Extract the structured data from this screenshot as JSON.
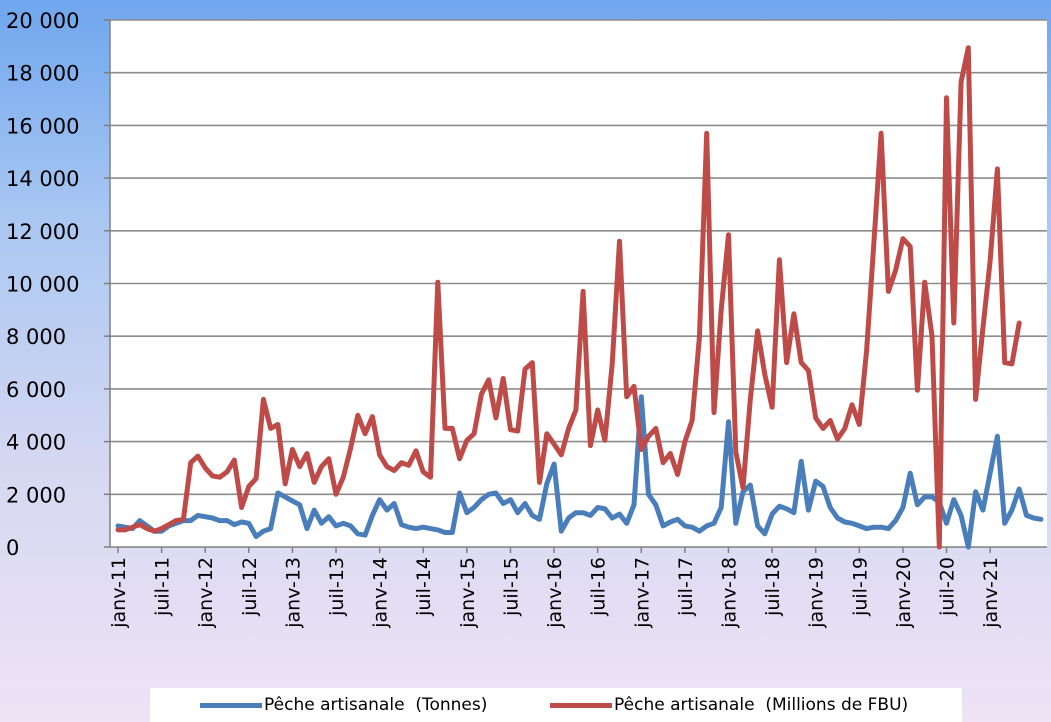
{
  "chart_data": {
    "type": "line",
    "title": "",
    "xlabel": "",
    "ylabel": "",
    "ylim": [
      0,
      20000
    ],
    "yticks": [
      "0",
      "2 000",
      "4 000",
      "6 000",
      "8 000",
      "10 000",
      "12 000",
      "14 000",
      "16 000",
      "18 000",
      "20 000"
    ],
    "xtick_labels": [
      "janv-11",
      "juil-11",
      "janv-12",
      "juil-12",
      "janv-13",
      "juil-13",
      "janv-14",
      "juil-14",
      "janv-15",
      "juil-15",
      "janv-16",
      "juil-16",
      "janv-17",
      "juil-17",
      "janv-18",
      "juil-18",
      "janv-19",
      "juil-19",
      "janv-20",
      "juil-20",
      "janv-21"
    ],
    "grid": true,
    "legend_position": "bottom",
    "series": [
      {
        "name": "Pêche artisanale  (Tonnes)",
        "color": "#4a7ebb",
        "values": [
          800,
          750,
          700,
          1000,
          800,
          600,
          600,
          800,
          900,
          1000,
          1000,
          1200,
          1150,
          1100,
          1000,
          1000,
          850,
          950,
          900,
          400,
          600,
          700,
          2050,
          1900,
          1750,
          1600,
          700,
          1400,
          900,
          1150,
          800,
          900,
          800,
          500,
          450,
          1200,
          1800,
          1400,
          1650,
          850,
          750,
          700,
          750,
          700,
          650,
          550,
          550,
          2050,
          1300,
          1500,
          1800,
          2000,
          2050,
          1650,
          1800,
          1300,
          1650,
          1200,
          1050,
          2400,
          3150,
          600,
          1100,
          1300,
          1300,
          1200,
          1500,
          1450,
          1100,
          1250,
          900,
          1600,
          5700,
          2000,
          1600,
          800,
          950,
          1050,
          800,
          750,
          600,
          800,
          900,
          1500,
          4750,
          900,
          2100,
          2350,
          800,
          500,
          1250,
          1550,
          1450,
          1300,
          3250,
          1400,
          2500,
          2300,
          1500,
          1100,
          950,
          900,
          800,
          700,
          750,
          750,
          700,
          1000,
          1500,
          2800,
          1600,
          1900,
          1900,
          1700,
          900,
          1800,
          1200,
          0,
          2100,
          1400,
          2800,
          4200,
          900,
          1400,
          2200,
          1200,
          1100,
          1050
        ]
      },
      {
        "name": "Pêche artisanale  (Millions de FBU)",
        "color": "#be4b48",
        "values": [
          650,
          650,
          750,
          850,
          700,
          600,
          700,
          850,
          1000,
          1050,
          3200,
          3450,
          3000,
          2700,
          2650,
          2850,
          3300,
          1500,
          2300,
          2600,
          5600,
          4500,
          4650,
          2400,
          3700,
          3050,
          3550,
          2450,
          3050,
          3350,
          2000,
          2650,
          3750,
          5000,
          4300,
          4950,
          3500,
          3050,
          2900,
          3200,
          3100,
          3650,
          2850,
          2650,
          10050,
          4500,
          4500,
          3350,
          4050,
          4300,
          5800,
          6350,
          4900,
          6400,
          4450,
          4400,
          6750,
          7000,
          2450,
          4300,
          3900,
          3500,
          4500,
          5200,
          9700,
          3850,
          5200,
          4050,
          6950,
          11600,
          5700,
          6100,
          3700,
          4200,
          4500,
          3200,
          3550,
          2750,
          4000,
          4800,
          7950,
          15700,
          5100,
          9000,
          11850,
          3600,
          2250,
          5600,
          8200,
          6550,
          5300,
          10900,
          7000,
          8850,
          7000,
          6700,
          4900,
          4500,
          4800,
          4100,
          4500,
          5400,
          4650,
          7450,
          11500,
          15700,
          9700,
          10500,
          11700,
          11400,
          5950,
          10050,
          8000,
          0,
          17050,
          8500,
          17650,
          18950,
          5600,
          8300,
          10850,
          14350,
          7000,
          6950,
          8500
        ]
      }
    ]
  }
}
